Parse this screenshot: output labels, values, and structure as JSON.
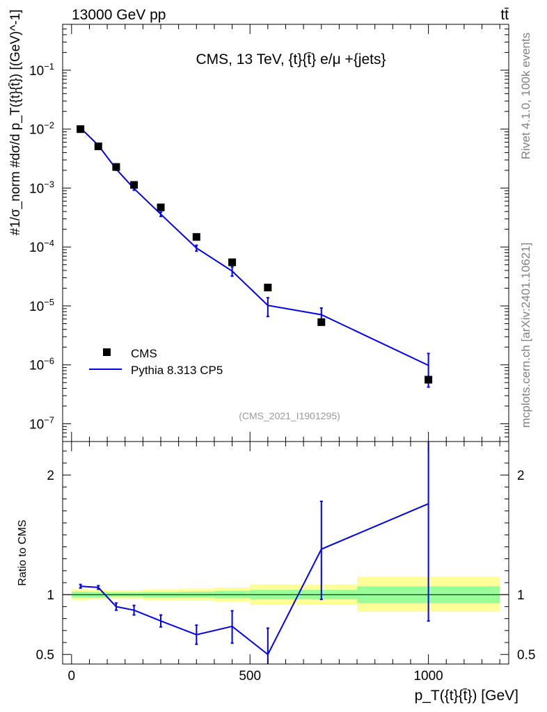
{
  "header": {
    "left": "13000 GeV pp",
    "right": "tt̄"
  },
  "side_texts": {
    "rivet": "Rivet 4.1.0,  100k events",
    "mcplots": "mcplots.cern.ch [arXiv:2401.10621]"
  },
  "chart_data": [
    {
      "type": "scatter",
      "panel": "main",
      "title": "CMS, 13 TeV, {t}{t̄} e/μ +{jets}",
      "watermark": "(CMS_2021_I1901295)",
      "ylabel": "#1/σ_norm #dσ/d p_T({t}{t̄}) [(GeV)^-1]",
      "yscale": "log",
      "xlim": [
        -25,
        1225
      ],
      "ylim": [
        5e-08,
        0.6
      ],
      "y_ticks": [
        {
          "value": 1e-07,
          "base": "10",
          "exp": "−7"
        },
        {
          "value": 1e-06,
          "base": "10",
          "exp": "−6"
        },
        {
          "value": 1e-05,
          "base": "10",
          "exp": "−5"
        },
        {
          "value": 0.0001,
          "base": "10",
          "exp": "−4"
        },
        {
          "value": 0.001,
          "base": "10",
          "exp": "−3"
        },
        {
          "value": 0.01,
          "base": "10",
          "exp": "−2"
        },
        {
          "value": 0.1,
          "base": "10",
          "exp": "−1"
        }
      ],
      "legend": [
        {
          "label": "CMS",
          "marker": "square",
          "color": "#000000"
        },
        {
          "label": "Pythia 8.313 CP5",
          "marker": "line",
          "color": "#0000ee"
        }
      ],
      "bins": [
        {
          "lo": 0,
          "hi": 50,
          "x": 25
        },
        {
          "lo": 50,
          "hi": 100,
          "x": 75
        },
        {
          "lo": 100,
          "hi": 150,
          "x": 125
        },
        {
          "lo": 150,
          "hi": 200,
          "x": 175
        },
        {
          "lo": 200,
          "hi": 300,
          "x": 250
        },
        {
          "lo": 300,
          "hi": 400,
          "x": 350
        },
        {
          "lo": 400,
          "hi": 500,
          "x": 450
        },
        {
          "lo": 500,
          "hi": 600,
          "x": 550
        },
        {
          "lo": 600,
          "hi": 800,
          "x": 700
        },
        {
          "lo": 800,
          "hi": 1200,
          "x": 1000
        }
      ],
      "series": [
        {
          "name": "CMS",
          "color": "#000000",
          "x": [
            25,
            75,
            125,
            175,
            250,
            350,
            450,
            550,
            700,
            1000
          ],
          "y": [
            0.01,
            0.0051,
            0.00228,
            0.00113,
            0.00047,
            0.000148,
            5.5e-05,
            2.05e-05,
            5.3e-06,
            5.6e-07
          ]
        },
        {
          "name": "Pythia 8.313 CP5",
          "color": "#0000ee",
          "x": [
            25,
            75,
            125,
            175,
            250,
            350,
            450,
            550,
            700,
            1000
          ],
          "y": [
            0.0105,
            0.0053,
            0.0021,
            0.00098,
            0.00036,
            9.6e-05,
            3.9e-05,
            1.02e-05,
            7.1e-06,
            9.8e-07
          ],
          "y_err_low": [
            0.0003,
            0.0002,
            9e-05,
            6e-05,
            3e-05,
            1.1e-05,
            7e-06,
            3.6e-06,
            2e-06,
            5.6e-07
          ],
          "y_err_high": [
            0.0003,
            0.0002,
            9e-05,
            6e-05,
            3e-05,
            1.1e-05,
            7e-06,
            3.6e-06,
            2.1e-06,
            5.8e-07
          ]
        }
      ]
    },
    {
      "type": "line",
      "panel": "ratio",
      "ylabel": "Ratio to CMS",
      "xlabel": "p_T({t}{t̄}) [GeV]",
      "xlim": [
        -25,
        1225
      ],
      "ylim": [
        0.42,
        2.28
      ],
      "x_ticks": [
        0,
        500,
        1000
      ],
      "y_ticks": [
        0.5,
        1,
        2
      ],
      "y_tick_labels": [
        "0.5",
        "1",
        "2"
      ],
      "reference": 1,
      "bands": [
        {
          "lo": 0,
          "hi": 50,
          "inner": [
            0.975,
            1.025
          ],
          "outer": [
            0.955,
            1.045
          ]
        },
        {
          "lo": 50,
          "hi": 100,
          "inner": [
            0.978,
            1.022
          ],
          "outer": [
            0.96,
            1.04
          ]
        },
        {
          "lo": 100,
          "hi": 150,
          "inner": [
            0.982,
            1.018
          ],
          "outer": [
            0.965,
            1.035
          ]
        },
        {
          "lo": 150,
          "hi": 200,
          "inner": [
            0.982,
            1.018
          ],
          "outer": [
            0.965,
            1.035
          ]
        },
        {
          "lo": 200,
          "hi": 300,
          "inner": [
            0.978,
            1.022
          ],
          "outer": [
            0.955,
            1.045
          ]
        },
        {
          "lo": 300,
          "hi": 400,
          "inner": [
            0.975,
            1.025
          ],
          "outer": [
            0.95,
            1.05
          ]
        },
        {
          "lo": 400,
          "hi": 500,
          "inner": [
            0.97,
            1.03
          ],
          "outer": [
            0.94,
            1.06
          ]
        },
        {
          "lo": 500,
          "hi": 600,
          "inner": [
            0.96,
            1.04
          ],
          "outer": [
            0.915,
            1.085
          ]
        },
        {
          "lo": 600,
          "hi": 800,
          "inner": [
            0.96,
            1.04
          ],
          "outer": [
            0.915,
            1.085
          ]
        },
        {
          "lo": 800,
          "hi": 1200,
          "inner": [
            0.93,
            1.07
          ],
          "outer": [
            0.86,
            1.15
          ]
        }
      ],
      "band_colors": {
        "inner": "#99ff99",
        "outer": "#ffff99"
      },
      "series": [
        {
          "name": "Pythia 8.313 CP5",
          "color": "#0000ee",
          "x": [
            25,
            75,
            125,
            175,
            250,
            350,
            450,
            550,
            700,
            1000
          ],
          "y": [
            1.07,
            1.06,
            0.9,
            0.87,
            0.78,
            0.665,
            0.735,
            0.5,
            1.38,
            1.76
          ],
          "y_err_low": [
            0.015,
            0.015,
            0.03,
            0.04,
            0.05,
            0.08,
            0.14,
            0.22,
            0.42,
            0.98
          ],
          "y_err_high": [
            0.015,
            0.015,
            0.03,
            0.04,
            0.05,
            0.08,
            0.13,
            0.22,
            0.4,
            0.6
          ]
        }
      ]
    }
  ]
}
